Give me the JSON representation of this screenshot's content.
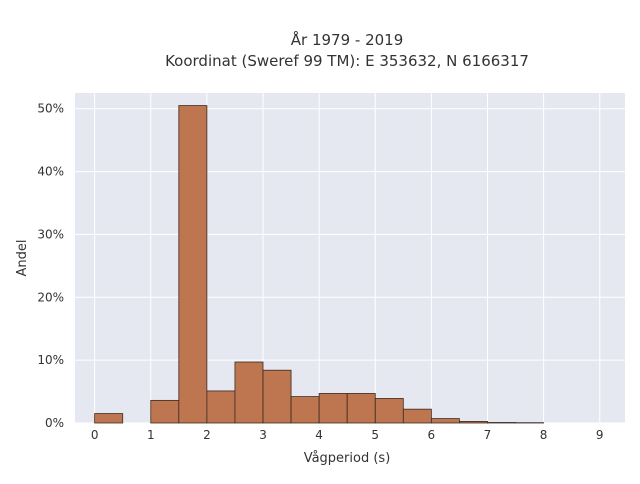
{
  "chart_data": {
    "type": "bar",
    "title_line1": "År 1979 - 2019",
    "title_line2": "Koordinat (Sweref 99 TM): E 353632, N 6166317",
    "xlabel": "Vågperiod (s)",
    "ylabel": "Andel",
    "bin_width": 0.5,
    "bins": [
      {
        "start": 0.0,
        "value": 1.5
      },
      {
        "start": 1.0,
        "value": 3.6
      },
      {
        "start": 1.5,
        "value": 50.5
      },
      {
        "start": 2.0,
        "value": 5.1
      },
      {
        "start": 2.5,
        "value": 9.7
      },
      {
        "start": 3.0,
        "value": 8.4
      },
      {
        "start": 3.5,
        "value": 4.2
      },
      {
        "start": 4.0,
        "value": 4.7
      },
      {
        "start": 4.5,
        "value": 4.7
      },
      {
        "start": 5.0,
        "value": 3.9
      },
      {
        "start": 5.5,
        "value": 2.2
      },
      {
        "start": 6.0,
        "value": 0.7
      },
      {
        "start": 6.5,
        "value": 0.25
      },
      {
        "start": 7.0,
        "value": 0.08
      },
      {
        "start": 7.5,
        "value": 0.05
      }
    ],
    "xlim": [
      -0.35,
      9.45
    ],
    "ylim": [
      0,
      52.5
    ],
    "x_ticks": [
      0,
      1,
      2,
      3,
      4,
      5,
      6,
      7,
      8,
      9
    ],
    "x_tick_labels": [
      "0",
      "1",
      "2",
      "3",
      "4",
      "5",
      "6",
      "7",
      "8",
      "9"
    ],
    "y_ticks": [
      0,
      10,
      20,
      30,
      40,
      50
    ],
    "y_tick_labels": [
      "0%",
      "10%",
      "20%",
      "30%",
      "40%",
      "50%"
    ],
    "grid": true,
    "colors": {
      "bar_fill": "#bd7650",
      "bar_stroke": "#3d2a1f",
      "plot_bg": "#e5e8f1",
      "grid": "#ffffff",
      "text": "#333333"
    }
  }
}
